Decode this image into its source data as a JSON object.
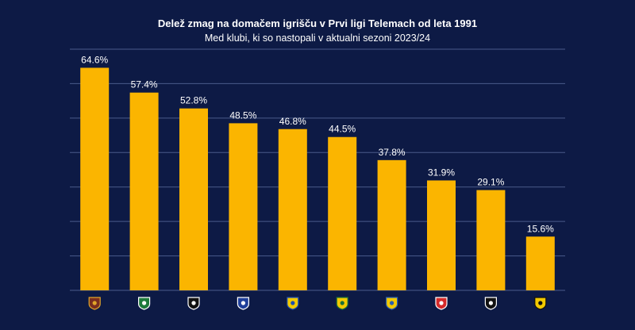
{
  "chart_data": {
    "type": "bar",
    "title": "Delež zmag na domačem igrišču v Prvi ligi Telemach od leta 1991",
    "subtitle": "Med klubi, ki so nastopali v aktualni sezoni 2023/24",
    "xlabel": "",
    "ylabel": "",
    "ylim": [
      0,
      70
    ],
    "grid": true,
    "values": [
      64.6,
      57.4,
      52.8,
      48.5,
      46.8,
      44.5,
      37.8,
      31.9,
      29.1,
      15.6
    ],
    "value_labels": [
      "64.6%",
      "57.4%",
      "52.8%",
      "48.5%",
      "46.8%",
      "44.5%",
      "37.8%",
      "31.9%",
      "29.1%",
      "15.6%"
    ],
    "category_icons": [
      {
        "name": "club-crest-maribor-icon",
        "color": "#7a2e1f",
        "accent": "#e0a52a"
      },
      {
        "name": "club-crest-olimpija-icon",
        "color": "#1e7a3c",
        "accent": "#ffffff"
      },
      {
        "name": "club-crest-mura-icon",
        "color": "#111111",
        "accent": "#ffffff"
      },
      {
        "name": "club-crest-celje-icon",
        "color": "#1f3f9a",
        "accent": "#ffffff"
      },
      {
        "name": "club-crest-domzale-icon",
        "color": "#f2c900",
        "accent": "#1f4fb0"
      },
      {
        "name": "club-crest-koper-icon",
        "color": "#f2c900",
        "accent": "#1b6f3a"
      },
      {
        "name": "club-crest-gorica-icon",
        "color": "#f2c900",
        "accent": "#2a5fb0"
      },
      {
        "name": "club-crest-aluminij-icon",
        "color": "#d42a2a",
        "accent": "#ffffff"
      },
      {
        "name": "club-crest-radomlje-icon",
        "color": "#111111",
        "accent": "#ffffff"
      },
      {
        "name": "club-crest-rogaska-icon",
        "color": "#f2c900",
        "accent": "#111111"
      }
    ],
    "colors": {
      "bar": "#fbb500",
      "background": "#0d1a45",
      "grid": "#4a5a8a",
      "text": "#ffffff"
    }
  }
}
